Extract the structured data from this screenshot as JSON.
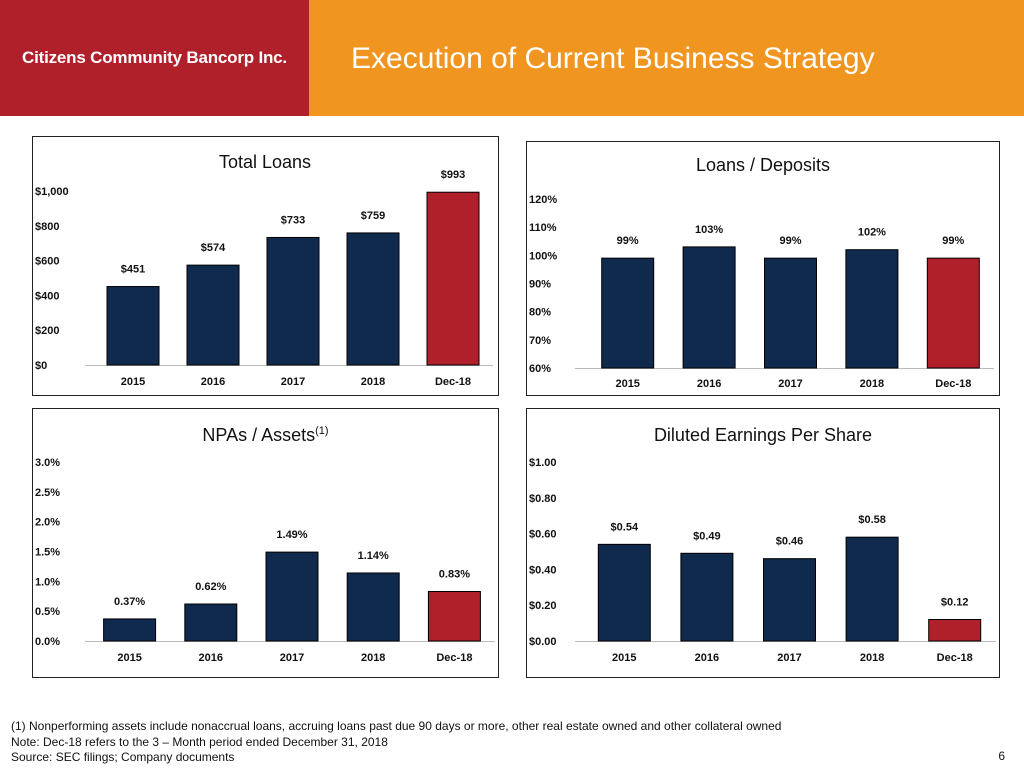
{
  "header": {
    "logo_text": "Citizens Community Bancorp Inc.",
    "title": "Execution of Current Business Strategy"
  },
  "colors": {
    "navy": "#0f2a4d",
    "red": "#b0202b",
    "orange": "#f0951f"
  },
  "chart_data": [
    {
      "id": "total-loans",
      "type": "bar",
      "title": "Total Loans",
      "categories": [
        "2015",
        "2016",
        "2017",
        "2018",
        "Dec-18"
      ],
      "values": [
        451,
        574,
        733,
        759,
        993
      ],
      "labels": [
        "$451",
        "$574",
        "$733",
        "$759",
        "$993"
      ],
      "ylim": [
        0,
        1000
      ],
      "yticks": [
        0,
        200,
        400,
        600,
        800,
        1000
      ],
      "ytick_labels": [
        "$0",
        "$200",
        "$400",
        "$600",
        "$800",
        "$1,000"
      ],
      "highlight_last": true
    },
    {
      "id": "loans-deposits",
      "type": "bar",
      "title": "Loans / Deposits",
      "categories": [
        "2015",
        "2016",
        "2017",
        "2018",
        "Dec-18"
      ],
      "values": [
        99,
        103,
        99,
        102,
        99
      ],
      "labels": [
        "99%",
        "103%",
        "99%",
        "102%",
        "99%"
      ],
      "ylim": [
        60,
        120
      ],
      "yticks": [
        60,
        70,
        80,
        90,
        100,
        110,
        120
      ],
      "ytick_labels": [
        "60%",
        "70%",
        "80%",
        "90%",
        "100%",
        "110%",
        "120%"
      ],
      "highlight_last": true
    },
    {
      "id": "npas-assets",
      "type": "bar",
      "title": "NPAs / Assets",
      "title_sup": "(1)",
      "categories": [
        "2015",
        "2016",
        "2017",
        "2018",
        "Dec-18"
      ],
      "values": [
        0.37,
        0.62,
        1.49,
        1.14,
        0.83
      ],
      "labels": [
        "0.37%",
        "0.62%",
        "1.49%",
        "1.14%",
        "0.83%"
      ],
      "ylim": [
        0,
        3.0
      ],
      "yticks": [
        0,
        0.5,
        1.0,
        1.5,
        2.0,
        2.5,
        3.0
      ],
      "ytick_labels": [
        "0.0%",
        "0.5%",
        "1.0%",
        "1.5%",
        "2.0%",
        "2.5%",
        "3.0%"
      ],
      "highlight_last": true
    },
    {
      "id": "diluted-eps",
      "type": "bar",
      "title": "Diluted Earnings Per Share",
      "categories": [
        "2015",
        "2016",
        "2017",
        "2018",
        "Dec-18"
      ],
      "values": [
        0.54,
        0.49,
        0.46,
        0.58,
        0.12
      ],
      "labels": [
        "$0.54",
        "$0.49",
        "$0.46",
        "$0.58",
        "$0.12"
      ],
      "ylim": [
        0,
        1.0
      ],
      "yticks": [
        0,
        0.2,
        0.4,
        0.6,
        0.8,
        1.0
      ],
      "ytick_labels": [
        "$0.00",
        "$0.20",
        "$0.40",
        "$0.60",
        "$0.80",
        "$1.00"
      ],
      "highlight_last": true
    }
  ],
  "footnotes": {
    "note1": "(1)    Nonperforming assets include nonaccrual loans, accruing loans past due 90 days or more, other real estate owned and other collateral owned",
    "note2": "Note: Dec-18 refers to the 3 – Month period ended December 31, 2018",
    "source": "Source: SEC filings; Company documents",
    "page_number": "6"
  }
}
